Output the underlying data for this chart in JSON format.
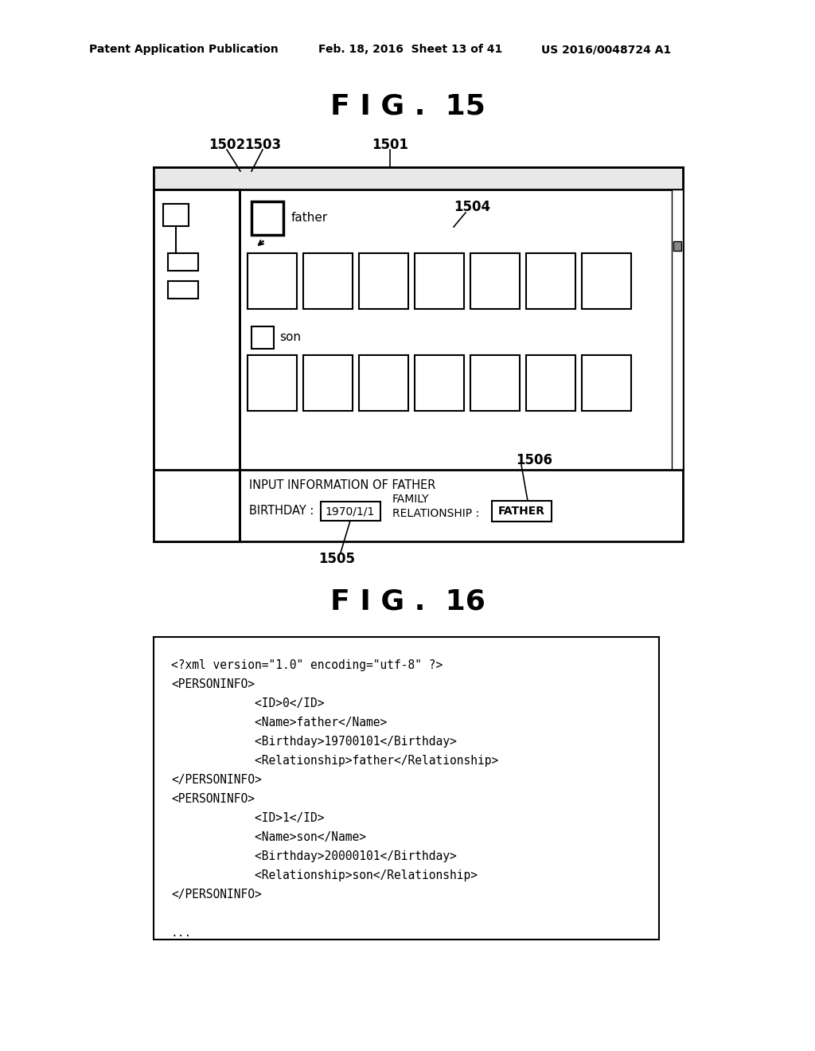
{
  "bg_color": "#ffffff",
  "header_text_left": "Patent Application Publication",
  "header_text_mid": "Feb. 18, 2016  Sheet 13 of 41",
  "header_text_right": "US 2016/0048724 A1",
  "fig15_title": "F I G .  15",
  "fig16_title": "F I G .  16",
  "xml_lines": [
    "<?xml version=\"1.0\" encoding=\"utf-8\" ?>",
    "<PERSONINFO>",
    "            <ID>0</ID>",
    "            <Name>father</Name>",
    "            <Birthday>19700101</Birthday>",
    "            <Relationship>father</Relationship>",
    "</PERSONINFO>",
    "<PERSONINFO>",
    "            <ID>1</ID>",
    "            <Name>son</Name>",
    "            <Birthday>20000101</Birthday>",
    "            <Relationship>son</Relationship>",
    "</PERSONINFO>",
    "",
    "..."
  ]
}
